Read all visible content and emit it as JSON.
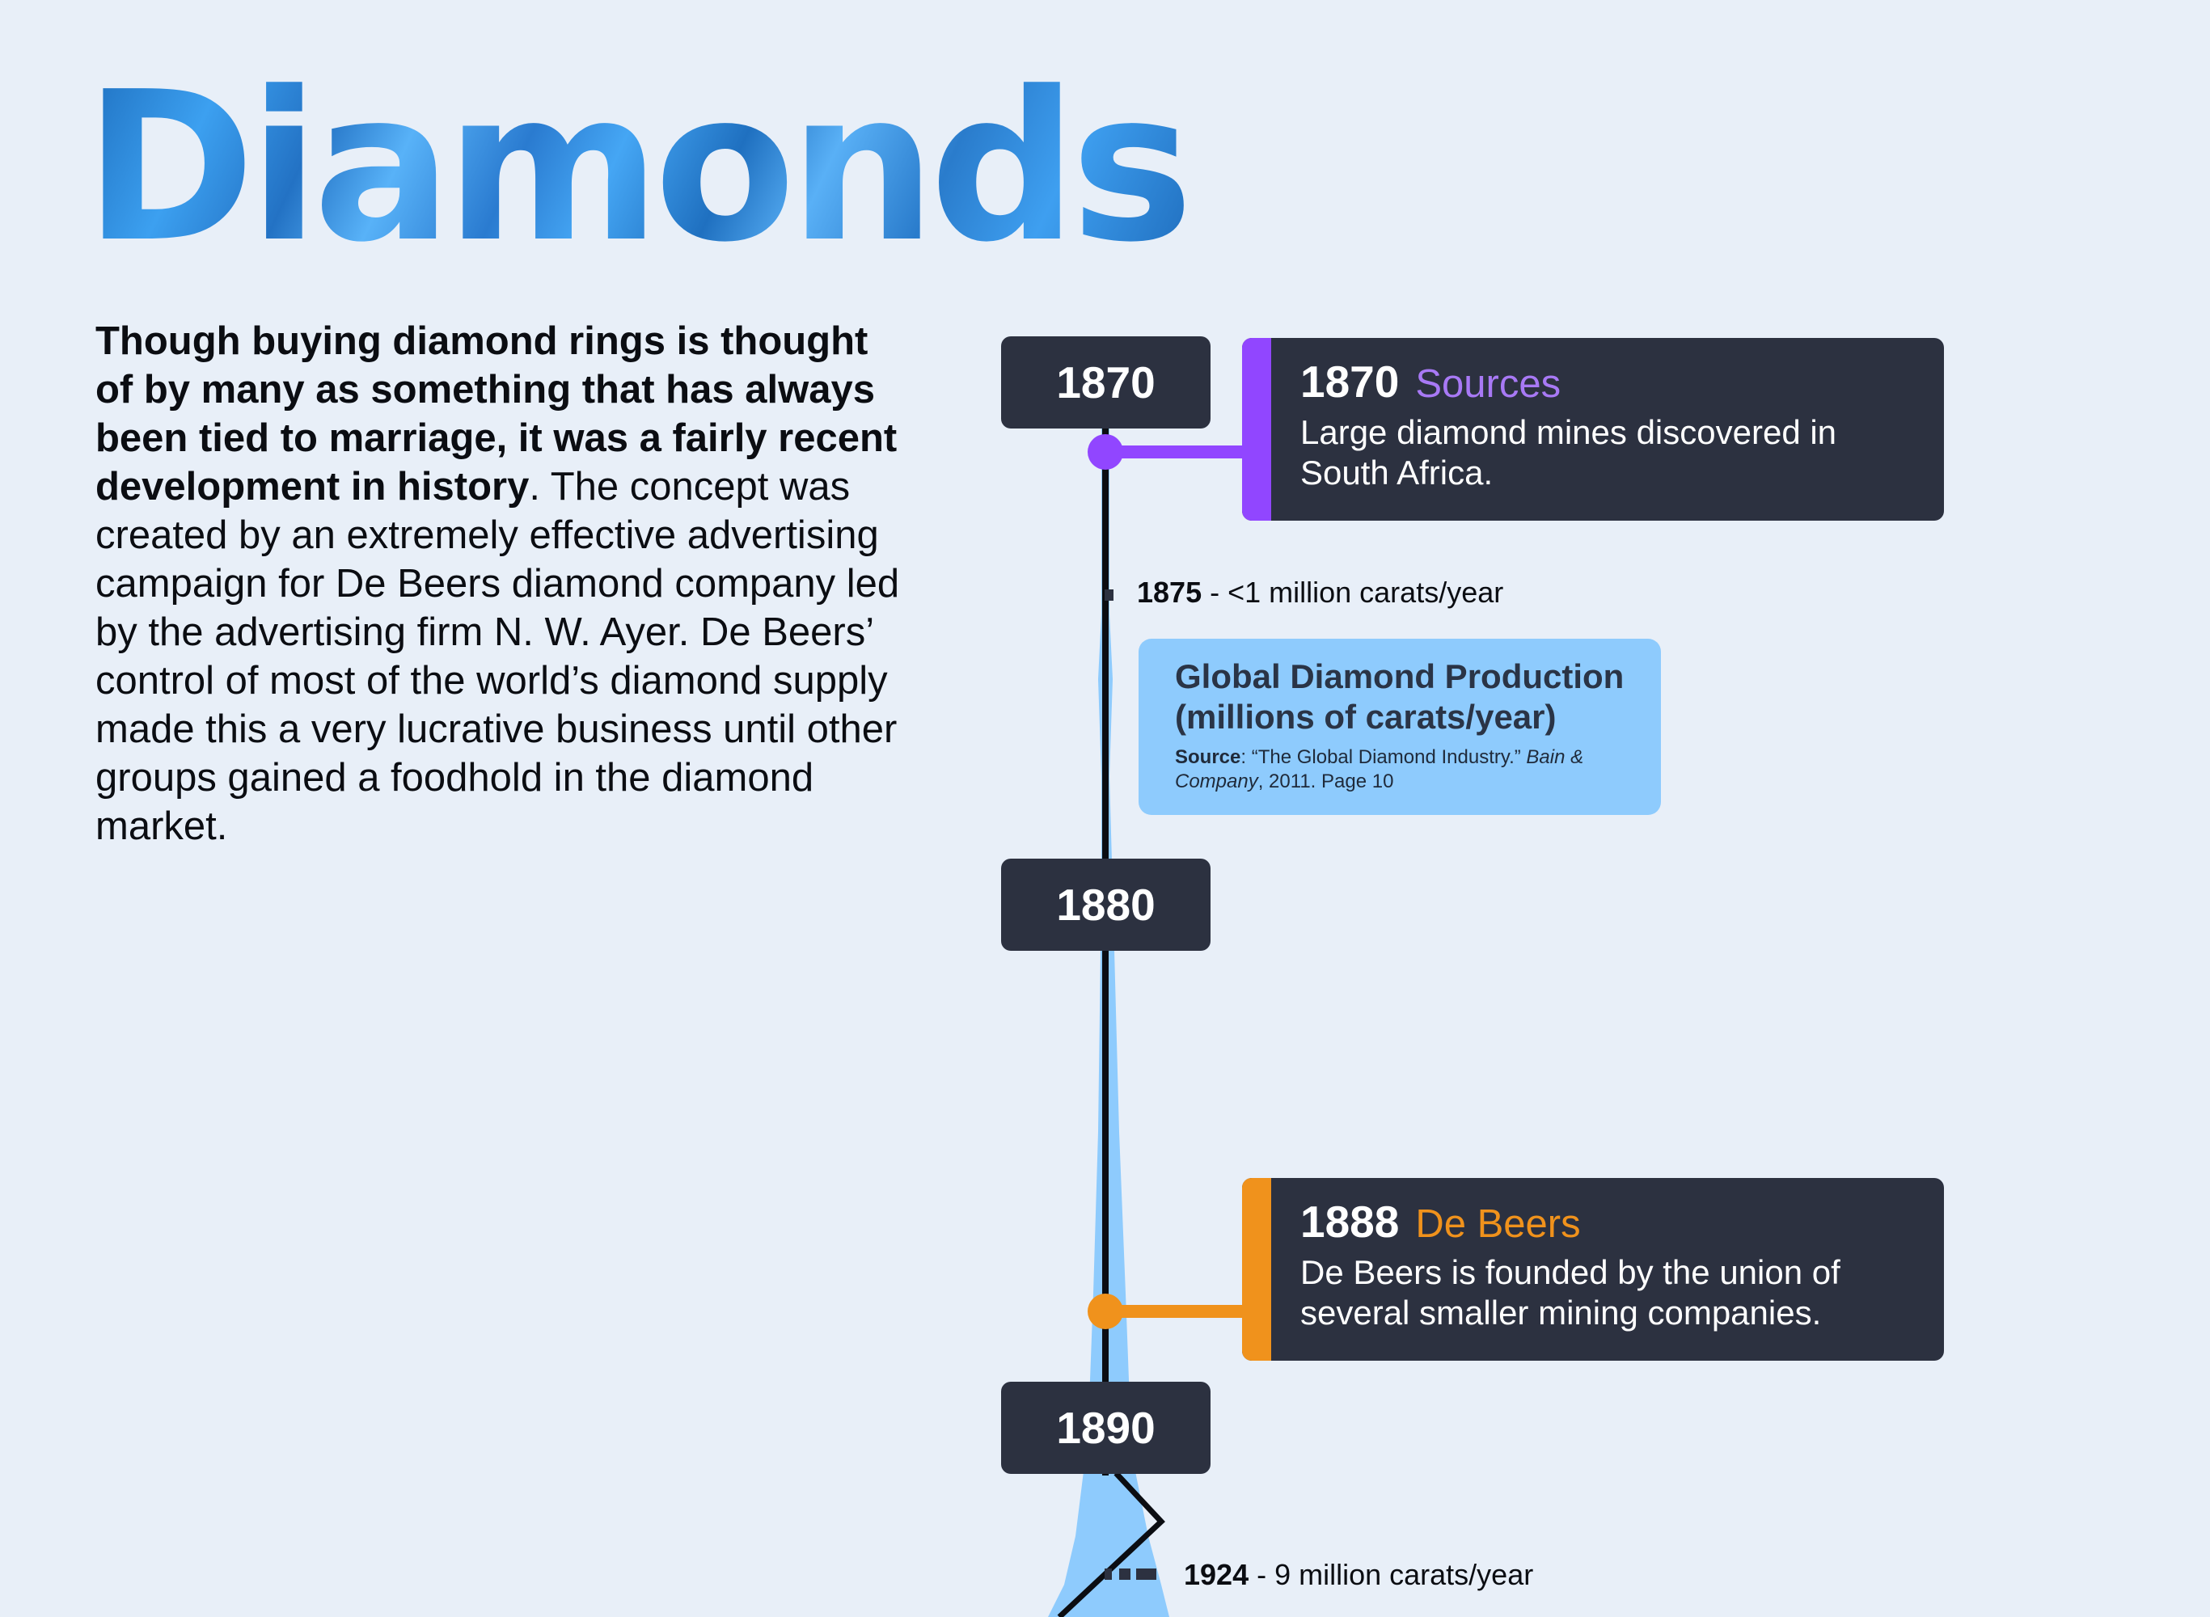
{
  "title": "Diamonds",
  "intro": {
    "bold": "Though buying diamond rings is thought of by many as something that has always been tied to marriage, it was a fairly recent development in history",
    "bold_end": ".",
    "rest": "The concept was created by an extremely effective advertising campaign for De Beers diamond company led by the advertising firm N. W. Ayer. De Beers’ control of most of the world’s diamond supply made this a very lucrative business until other groups gained a foodhold in the diamond market."
  },
  "timeline": {
    "years": [
      "1870",
      "1880",
      "1890"
    ],
    "events": [
      {
        "year": "1870",
        "topic": "Sources",
        "color": "#9146ff",
        "topic_color": "#a879f5",
        "description": "Large diamond mines discovered in South Africa."
      },
      {
        "year": "1888",
        "topic": "De Beers",
        "color": "#f0921c",
        "topic_color": "#f0921c",
        "description": "De Beers is founded by the union of several smaller mining companies."
      }
    ],
    "production_notes": [
      {
        "year": "1875",
        "text": " - <1 million carats/year"
      },
      {
        "year": "1924",
        "text": " - 9 million carats/year"
      }
    ]
  },
  "legend": {
    "title": "Global Diamond Production (millions of carats/year)",
    "source_label": "Source",
    "source_text": ": “The Global Diamond Industry.” ",
    "source_publisher": "Bain & Company",
    "source_tail": ", 2011. Page 10"
  },
  "colors": {
    "background": "#e8eff8",
    "box": "#2c3140",
    "production_fill": "#8ecbfd",
    "axis": "#0b0d12"
  }
}
